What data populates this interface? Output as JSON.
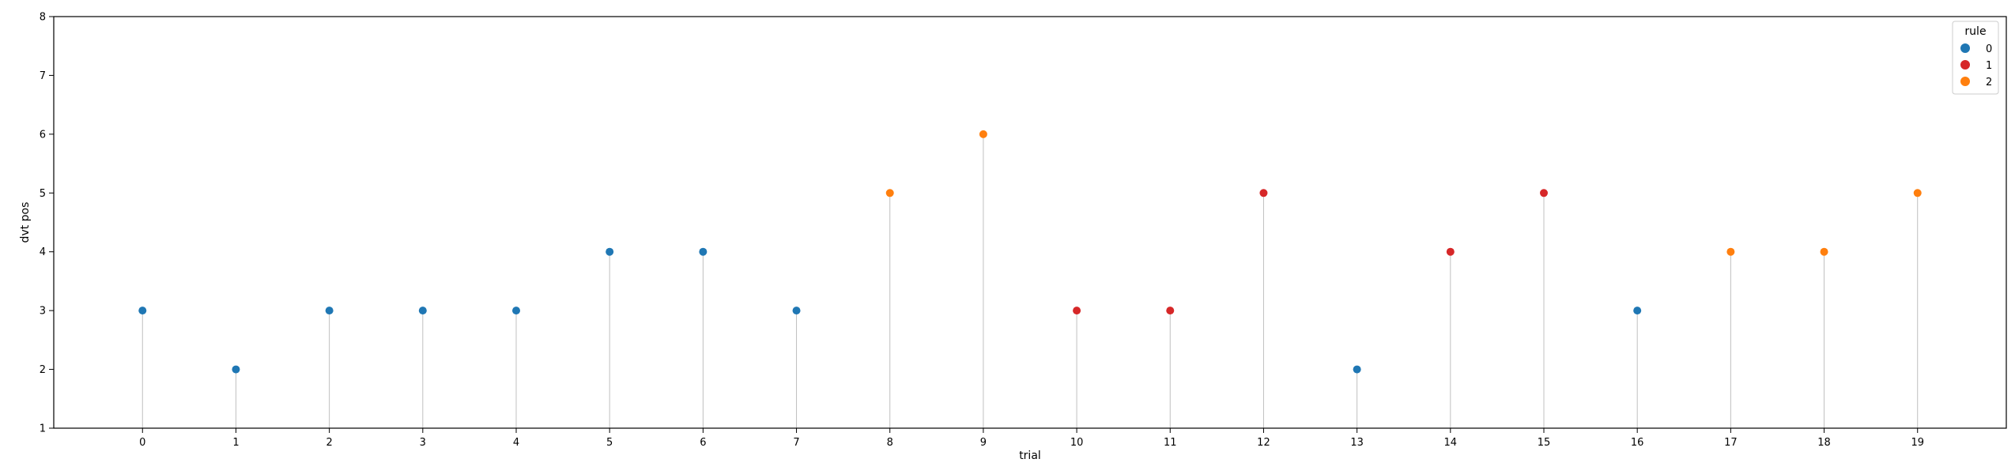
{
  "chart_data": {
    "type": "scatter",
    "title": "",
    "xlabel": "trial",
    "ylabel": "dvt pos",
    "x": [
      0,
      1,
      2,
      3,
      4,
      5,
      6,
      7,
      8,
      9,
      10,
      11,
      12,
      13,
      14,
      15,
      16,
      17,
      18,
      19
    ],
    "y": [
      3,
      2,
      3,
      3,
      3,
      4,
      4,
      3,
      5,
      6,
      3,
      3,
      5,
      2,
      4,
      5,
      3,
      4,
      4,
      5
    ],
    "rule": [
      0,
      0,
      0,
      0,
      0,
      0,
      0,
      0,
      2,
      2,
      1,
      1,
      1,
      0,
      1,
      1,
      0,
      2,
      2,
      2
    ],
    "xticks": [
      0,
      1,
      2,
      3,
      4,
      5,
      6,
      7,
      8,
      9,
      10,
      11,
      12,
      13,
      14,
      15,
      16,
      17,
      18,
      19
    ],
    "yticks": [
      1,
      2,
      3,
      4,
      5,
      6,
      7,
      8
    ],
    "xlim": [
      -0.95,
      19.95
    ],
    "ylim": [
      1,
      8
    ],
    "stems": true,
    "grid": false,
    "legend": {
      "title": "rule",
      "placement": "top-right",
      "entries": [
        {
          "label": "0",
          "color": "#1f77b4"
        },
        {
          "label": "1",
          "color": "#d62728"
        },
        {
          "label": "2",
          "color": "#ff7f0e"
        }
      ]
    },
    "stem_color": "#c0c0c0"
  }
}
